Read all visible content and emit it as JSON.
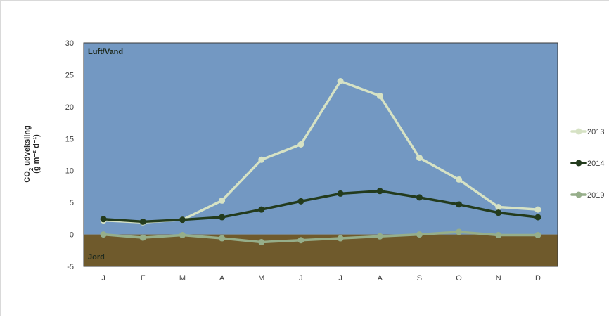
{
  "chart_data": {
    "type": "line",
    "categories": [
      "J",
      "F",
      "M",
      "A",
      "M",
      "J",
      "J",
      "A",
      "S",
      "O",
      "N",
      "D"
    ],
    "ylim": [
      -5,
      30
    ],
    "yticks": [
      30,
      25,
      20,
      15,
      10,
      5,
      0,
      -5
    ],
    "ylabel_line1": "CO",
    "ylabel_sub": "2",
    "ylabel_line1_rest": " udveksling",
    "ylabel_line2": "(g m⁻² d⁻¹)",
    "region_top_label": "Luft/Vand",
    "region_bottom_label": "Jord",
    "region_top_color": "#7398c2",
    "region_bottom_color": "#6f5a2c",
    "grid": false,
    "legend_position": "right",
    "series": [
      {
        "name": "2013",
        "color": "#d6e2c4",
        "values": [
          2.2,
          1.9,
          2.3,
          5.3,
          11.7,
          14.1,
          24.0,
          21.7,
          12.0,
          8.6,
          4.3,
          3.9
        ]
      },
      {
        "name": "2014",
        "color": "#233b1d",
        "values": [
          2.4,
          2.0,
          2.3,
          2.7,
          3.9,
          5.2,
          6.4,
          6.8,
          5.8,
          4.7,
          3.4,
          2.7
        ]
      },
      {
        "name": "2019",
        "color": "#96ae8a",
        "values": [
          0.0,
          -0.5,
          -0.1,
          -0.6,
          -1.2,
          -0.9,
          -0.6,
          -0.3,
          0.0,
          0.4,
          -0.1,
          -0.1
        ]
      }
    ]
  }
}
